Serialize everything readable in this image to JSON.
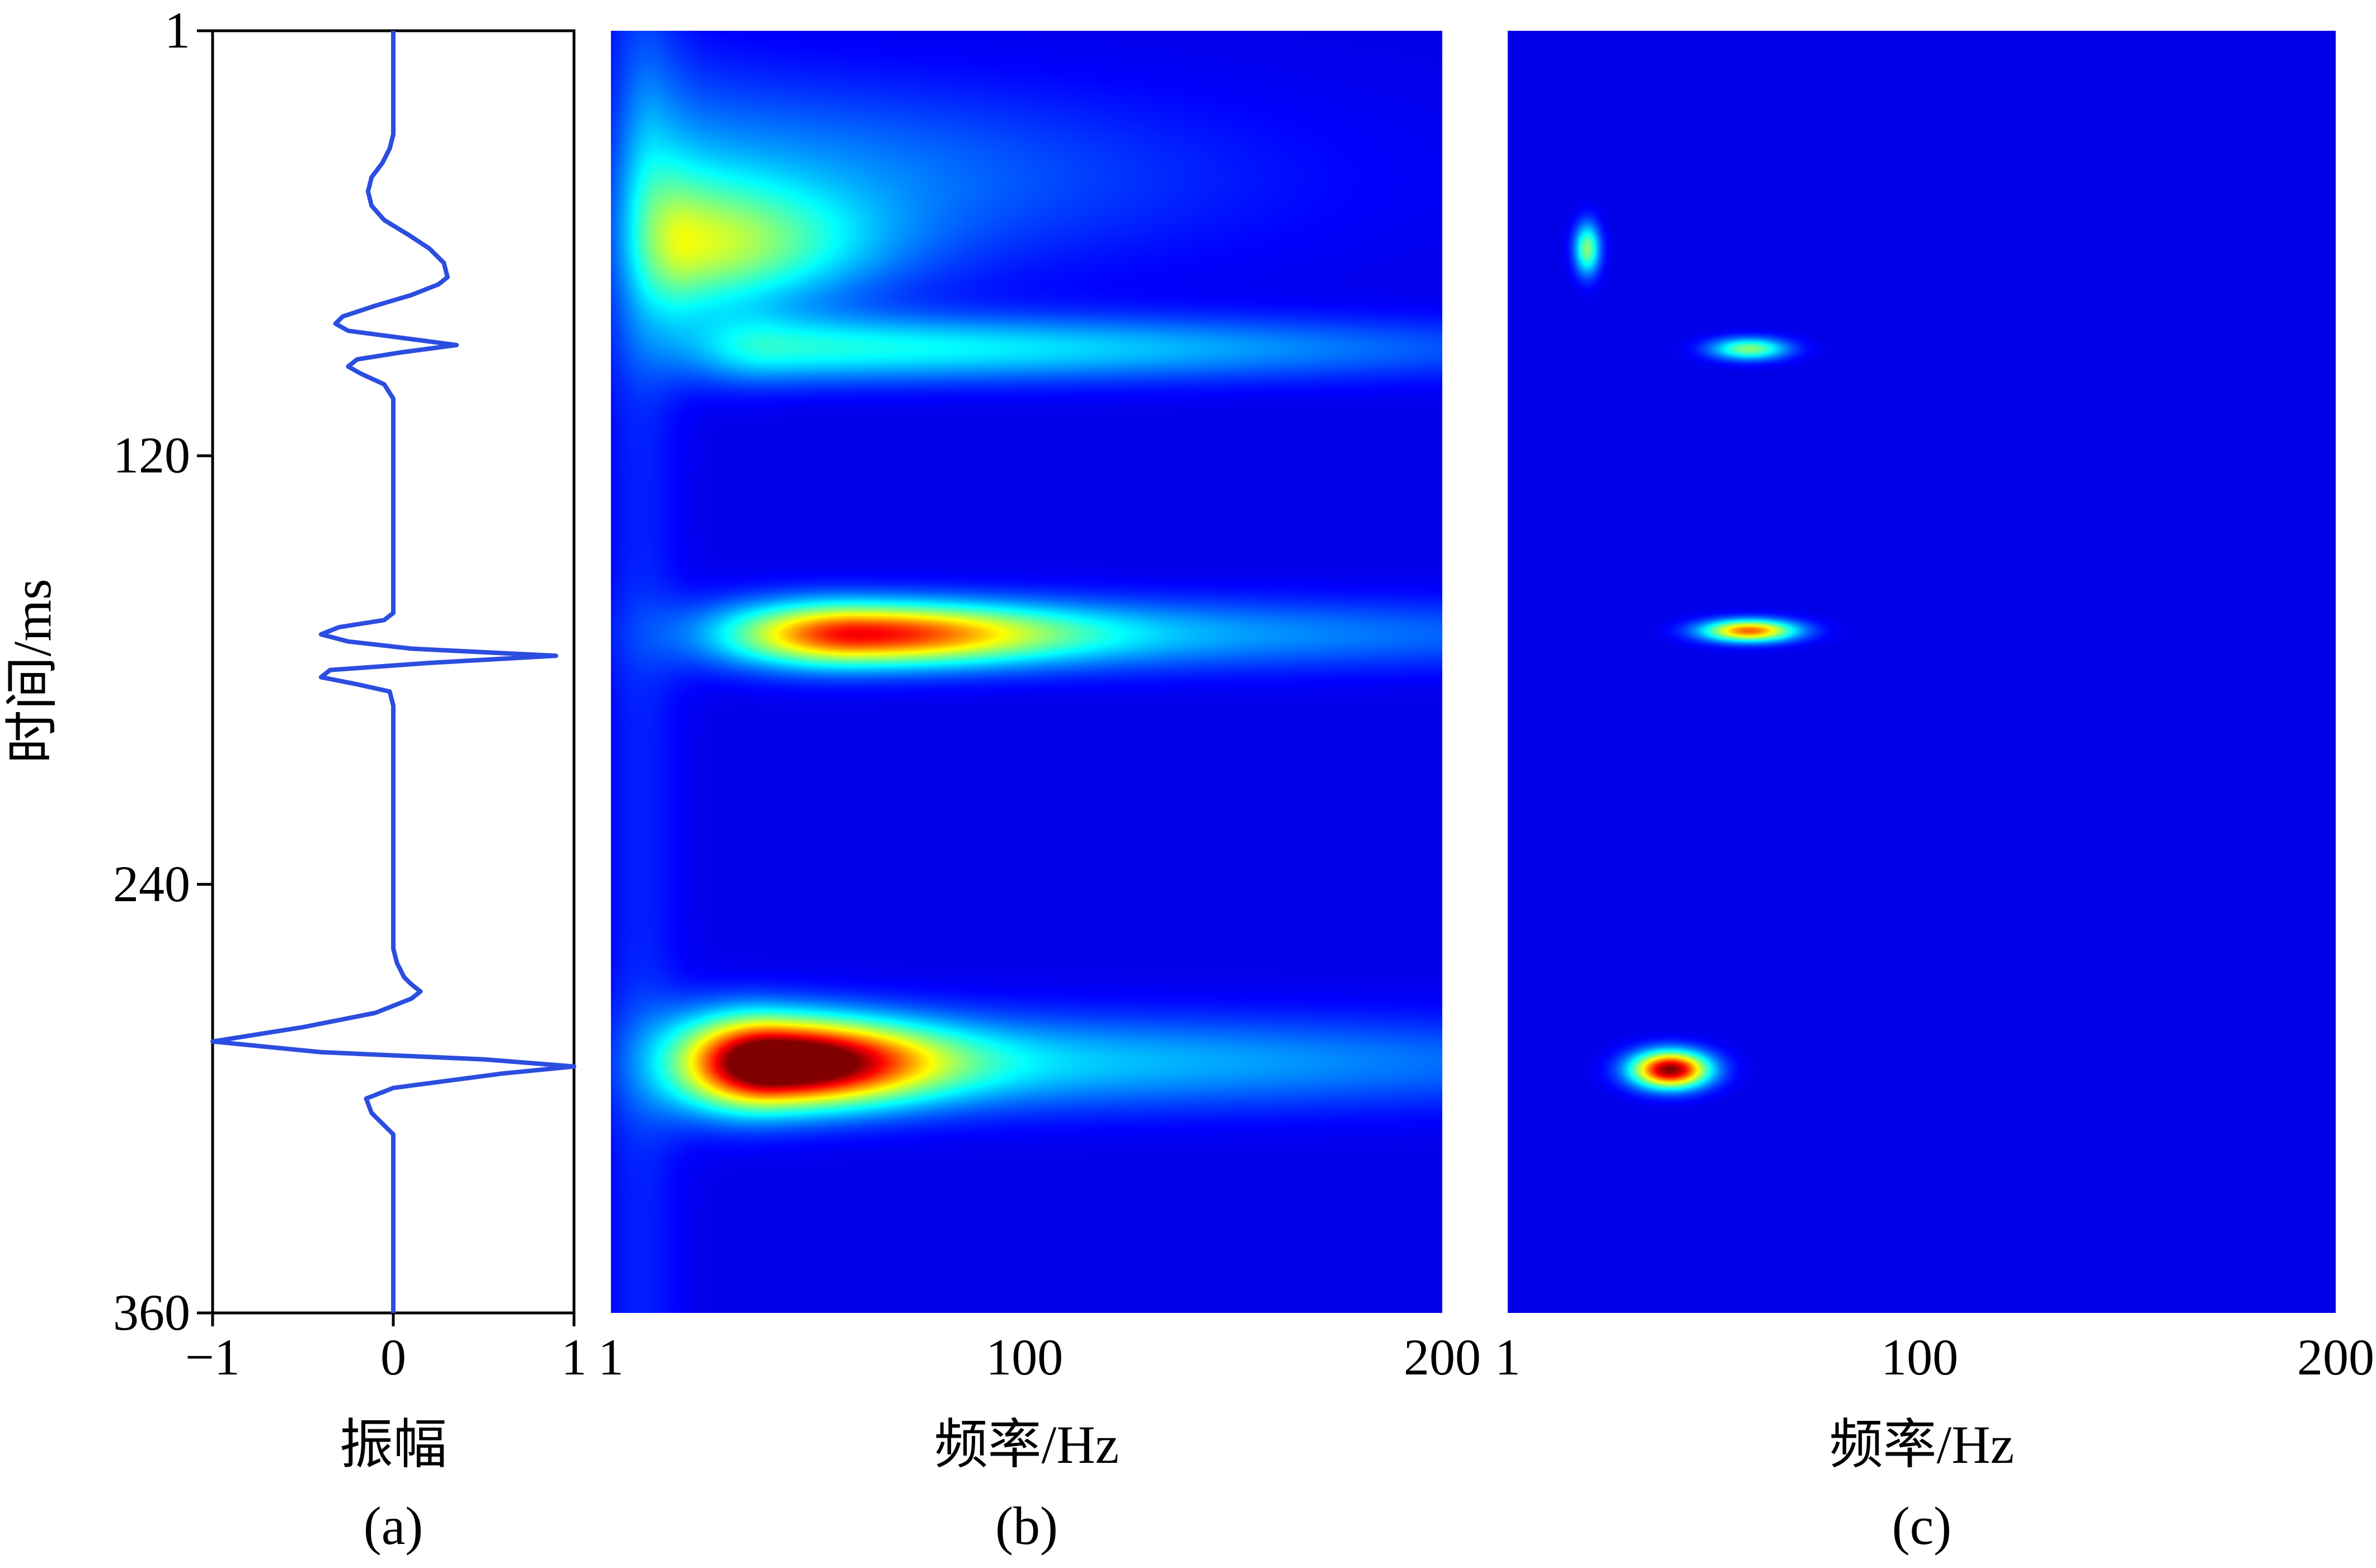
{
  "chart_data": [
    {
      "type": "line",
      "panel": "(a)",
      "xlabel": "振幅",
      "ylabel": "时间/ms",
      "xlim": [
        -1,
        1
      ],
      "ylim": [
        1,
        360
      ],
      "y_inverted": true,
      "x_ticks": [
        "−1",
        "0",
        "1"
      ],
      "y_ticks": [
        "1",
        "120",
        "240",
        "360"
      ],
      "color": "#2b4ee0",
      "series": [
        {
          "x": [
            0,
            0,
            0,
            -0.02,
            -0.06,
            -0.12,
            -0.14,
            -0.12,
            -0.05,
            0.08,
            0.2,
            0.28,
            0.3,
            0.25,
            0.1,
            -0.1,
            -0.28,
            -0.32,
            -0.25,
            0.05,
            0.35,
            0.05,
            -0.2,
            -0.25,
            -0.18,
            -0.05,
            0,
            0,
            0,
            0,
            0,
            0,
            -0.05,
            -0.3,
            -0.4,
            -0.25,
            0.1,
            0.9,
            0.2,
            -0.35,
            -0.4,
            -0.2,
            -0.02,
            0,
            0,
            0,
            0,
            0,
            0,
            0.02,
            0.06,
            0.1,
            0.15,
            0.1,
            -0.1,
            -0.5,
            -1.0,
            -0.4,
            0.5,
            1.0,
            0.6,
            0.0,
            -0.15,
            -0.12,
            0,
            0,
            0
          ],
          "y": [
            1,
            20,
            30,
            34,
            38,
            42,
            46,
            50,
            54,
            58,
            62,
            66,
            70,
            72,
            75,
            78,
            81,
            83,
            85,
            87,
            89,
            91,
            93,
            95,
            97,
            100,
            104,
            110,
            120,
            140,
            160,
            164,
            166,
            168,
            170,
            172,
            174,
            176,
            178,
            180,
            182,
            184,
            186,
            190,
            200,
            220,
            240,
            250,
            258,
            262,
            266,
            268,
            270,
            272,
            276,
            280,
            284,
            287,
            289,
            291,
            293,
            297,
            300,
            304,
            310,
            330,
            360
          ]
        }
      ]
    },
    {
      "type": "heatmap",
      "panel": "(b)",
      "xlabel": "频率/Hz",
      "xlim": [
        1,
        200
      ],
      "ylim": [
        1,
        360
      ],
      "x_ticks": [
        "1",
        "100",
        "200"
      ],
      "colormap": "jet",
      "background": "#00008c",
      "blobs": [
        {
          "t": 62,
          "f0": 20,
          "fw": 40,
          "tw": 16,
          "amp": 0.42,
          "decay": 0.018
        },
        {
          "t": 90,
          "f0": 40,
          "fw": 160,
          "tw": 9,
          "amp": 0.32,
          "decay": 0.004
        },
        {
          "t": 42,
          "f0": 12,
          "fw": 120,
          "tw": 26,
          "amp": 0.2,
          "decay": 0.01
        },
        {
          "t": 170,
          "f0": 60,
          "fw": 45,
          "tw": 8,
          "amp": 0.62,
          "decay": 0.012
        },
        {
          "t": 170,
          "f0": 60,
          "fw": 180,
          "tw": 10,
          "amp": 0.25,
          "decay": 0.003
        },
        {
          "t": 290,
          "f0": 40,
          "fw": 35,
          "tw": 11,
          "amp": 1.0,
          "decay": 0.016
        },
        {
          "t": 290,
          "f0": 40,
          "fw": 200,
          "tw": 13,
          "amp": 0.28,
          "decay": 0.002
        }
      ]
    },
    {
      "type": "heatmap",
      "panel": "(c)",
      "xlabel": "频率/Hz",
      "xlim": [
        1,
        200
      ],
      "ylim": [
        1,
        360
      ],
      "x_ticks": [
        "1",
        "100",
        "200"
      ],
      "colormap": "jet",
      "background": "#00008c",
      "peaks": [
        {
          "t": 62,
          "f": 20,
          "amp": 0.45,
          "fw": 3,
          "tw": 7
        },
        {
          "t": 90,
          "f": 59,
          "amp": 0.45,
          "fw": 9,
          "tw": 3
        },
        {
          "t": 169,
          "f": 59,
          "amp": 0.75,
          "fw": 11,
          "tw": 3
        },
        {
          "t": 292,
          "f": 40,
          "amp": 1.0,
          "fw": 9,
          "tw": 5
        }
      ]
    }
  ]
}
